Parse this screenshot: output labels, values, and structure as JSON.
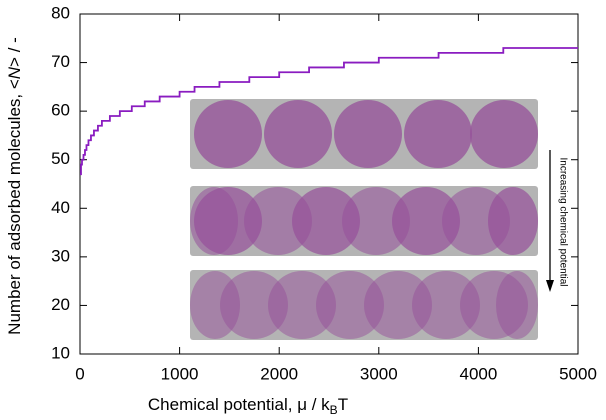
{
  "chart_data": {
    "type": "line",
    "xlabel_parts": [
      "Chemical potential, μ / k",
      "B",
      "T"
    ],
    "ylabel_parts": [
      "Number of adsorbed molecules, <",
      "N",
      "> / -"
    ],
    "annotation": "Increasing chemical potential",
    "xlim": [
      0,
      5000
    ],
    "ylim": [
      10,
      80
    ],
    "xticks": [
      0,
      1000,
      2000,
      3000,
      4000,
      5000
    ],
    "yticks": [
      10,
      20,
      30,
      40,
      50,
      60,
      70,
      80
    ],
    "color": "#8a1cc0",
    "x": [
      0,
      10,
      10,
      20,
      20,
      35,
      35,
      50,
      50,
      65,
      65,
      85,
      85,
      110,
      110,
      140,
      140,
      180,
      180,
      220,
      220,
      300,
      300,
      400,
      400,
      520,
      520,
      650,
      650,
      800,
      800,
      1000,
      1000,
      1150,
      1150,
      1400,
      1400,
      1700,
      1700,
      2000,
      2000,
      2300,
      2300,
      2650,
      2650,
      3000,
      3000,
      3600,
      3600,
      4250,
      4250,
      5000
    ],
    "values": [
      47,
      47,
      49,
      49,
      50,
      50,
      51,
      51,
      52,
      52,
      53,
      53,
      54,
      54,
      55,
      55,
      56,
      56,
      57,
      57,
      58,
      58,
      59,
      59,
      60,
      60,
      61,
      61,
      62,
      62,
      63,
      63,
      64,
      64,
      65,
      65,
      66,
      66,
      67,
      67,
      68,
      68,
      69,
      69,
      70,
      70,
      71,
      71,
      72,
      72,
      73,
      73
    ]
  }
}
